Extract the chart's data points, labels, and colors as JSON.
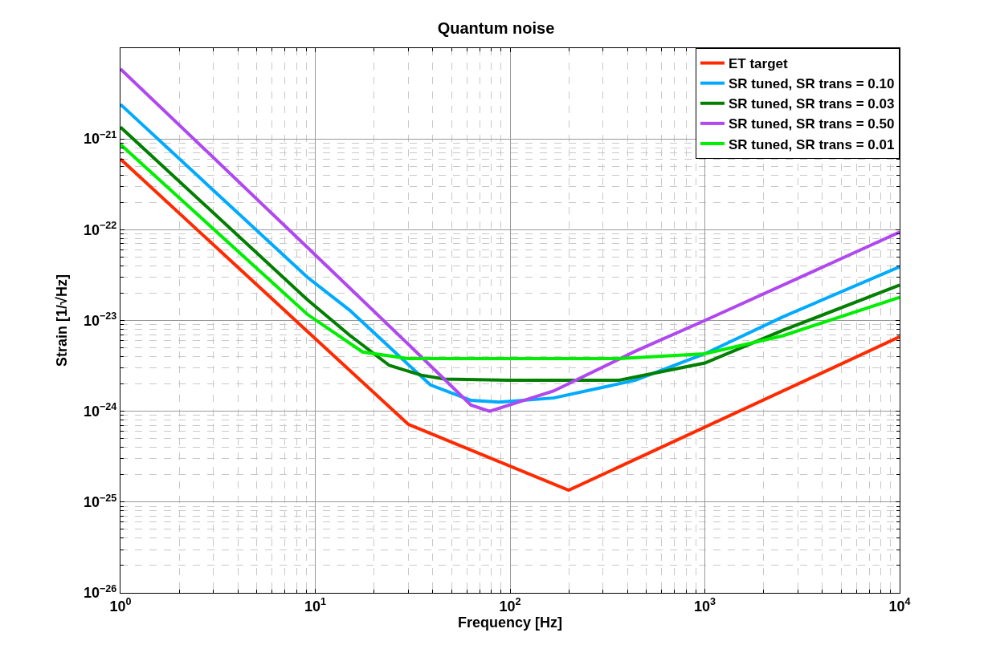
{
  "chart_data": {
    "type": "line",
    "title": "Quantum noise",
    "xlabel": "Frequency [Hz]",
    "ylabel": "Strain [1/√Hz]",
    "log": "xy",
    "grid": true,
    "legend": "top right",
    "line_style": "solid",
    "marker": "none",
    "xlim": [
      1,
      10000
    ],
    "ylim": [
      1e-26,
      1e-20
    ],
    "xticks": [
      {
        "value": 1,
        "label": "10$^{0}$"
      },
      {
        "value": 10,
        "label": "10$^{1}$"
      },
      {
        "value": 100,
        "label": "10$^{2}$"
      },
      {
        "value": 1000,
        "label": "10$^{3}$"
      },
      {
        "value": 10000,
        "label": "10$^{4}$"
      }
    ],
    "yticks": [
      {
        "value": 1e-26,
        "label": "10$^{−26}$"
      },
      {
        "value": 1e-25,
        "label": "10$^{−25}$"
      },
      {
        "value": 1e-24,
        "label": "10$^{−24}$"
      },
      {
        "value": 1e-23,
        "label": "10$^{−23}$"
      },
      {
        "value": 1e-22,
        "label": "10$^{−22}$"
      },
      {
        "value": 1e-21,
        "label": "10$^{−21}$"
      }
    ],
    "series": [
      {
        "name": "ET target",
        "color": "#ff2a00",
        "x": [
          1,
          9.1,
          30,
          200,
          10000
        ],
        "values": [
          6e-22,
          7.6e-24,
          7.2e-25,
          1.35e-25,
          6.6e-24
        ]
      },
      {
        "name": "SR tuned, SR trans = 0.10",
        "color": "#00aaff",
        "x": [
          1,
          9.1,
          15,
          24,
          39,
          63,
          88,
          167,
          441,
          1000,
          2520,
          10000
        ],
        "values": [
          2.4e-21,
          3e-23,
          1.3e-23,
          5.1e-24,
          1.95e-24,
          1.32e-24,
          1.26e-24,
          1.4e-24,
          2.2e-24,
          4.3e-24,
          1.1e-23,
          3.9e-23
        ]
      },
      {
        "name": "SR tuned, SR trans = 0.03",
        "color": "#007f00",
        "x": [
          1,
          9.1,
          15,
          24,
          35,
          46,
          100,
          363,
          1000,
          2520,
          10000
        ],
        "values": [
          1.35e-21,
          1.7e-23,
          6.9e-24,
          3.2e-24,
          2.5e-24,
          2.26e-24,
          2.2e-24,
          2.2e-24,
          3.4e-24,
          7.8e-24,
          2.45e-23
        ]
      },
      {
        "name": "SR tuned, SR trans = 0.50",
        "color": "#b048f0",
        "x": [
          1,
          9.1,
          33,
          63,
          78.5,
          167,
          441,
          1000,
          10000
        ],
        "values": [
          5.9e-21,
          6.4e-23,
          4.5e-24,
          1.17e-24,
          1e-24,
          1.67e-24,
          4.6e-24,
          1e-23,
          9.4e-23
        ]
      },
      {
        "name": "SR tuned, SR trans = 0.01",
        "color": "#00ee00",
        "x": [
          1,
          9.1,
          17.5,
          30,
          100,
          363,
          1000,
          2520,
          10000
        ],
        "values": [
          8.7e-22,
          1.17e-23,
          4.5e-24,
          3.8e-24,
          3.8e-24,
          3.8e-24,
          4.3e-24,
          6.8e-24,
          1.8e-23
        ]
      }
    ]
  }
}
